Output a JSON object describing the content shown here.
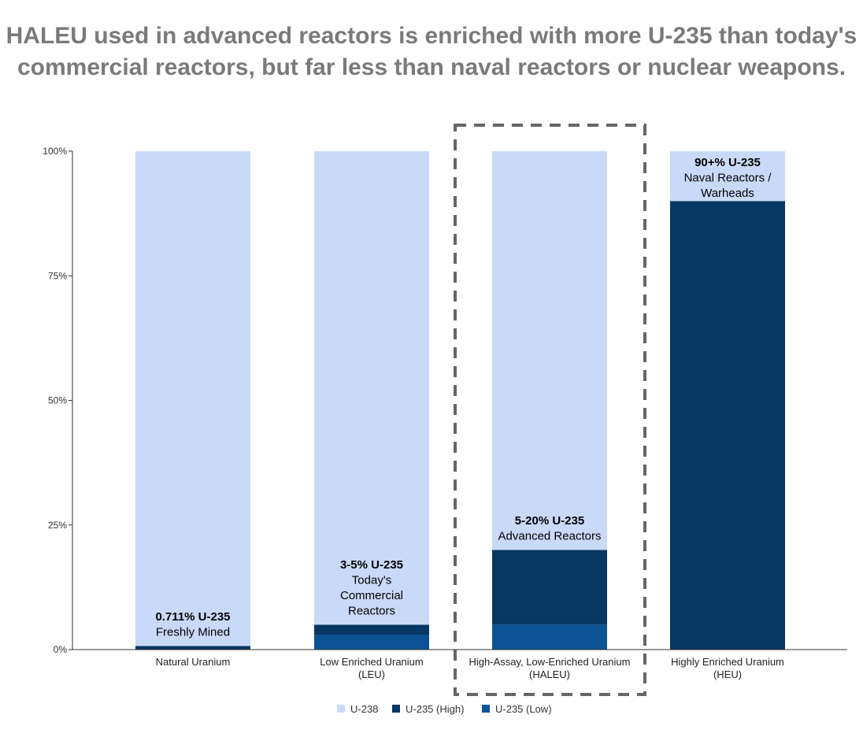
{
  "title": {
    "line1": "HALEU used in advanced reactors is enriched with more U-235 than today's",
    "line2": "commercial reactors, but far less than naval reactors or nuclear weapons."
  },
  "colors": {
    "u238": "#c9daf8",
    "u235_high": "#073763",
    "u235_low": "#0b5394",
    "axis": "#333333",
    "highlight_box": "#666666",
    "title": "#7a7a7a"
  },
  "chart_data": {
    "type": "bar",
    "stacked": true,
    "categories": [
      [
        "Natural Uranium"
      ],
      [
        "Low Enriched Uranium",
        "(LEU)"
      ],
      [
        "High-Assay, Low-Enriched Uranium",
        "(HALEU)"
      ],
      [
        "Highly Enriched Uranium",
        "(HEU)"
      ]
    ],
    "series": [
      {
        "name": "U-235 (Low)",
        "color": "#0b5394",
        "values": [
          0,
          3,
          5,
          0
        ]
      },
      {
        "name": "U-235 (High)",
        "color": "#073763",
        "values": [
          0.711,
          2,
          15,
          90
        ]
      },
      {
        "name": "U-238",
        "color": "#c9daf8",
        "values": [
          99.289,
          95,
          80,
          10
        ]
      }
    ],
    "legend_order": [
      "U-238",
      "U-235 (High)",
      "U-235 (Low)"
    ],
    "legend_position": "bottom",
    "y_ticks": [
      "0%",
      "25%",
      "50%",
      "75%",
      "100%"
    ],
    "y_tick_values": [
      0,
      25,
      50,
      75,
      100
    ],
    "ylim": [
      0,
      100
    ],
    "grid": false,
    "highlighted_category": 2,
    "annotations": [
      {
        "category": 0,
        "lines": [
          "0.711% U-235",
          "Freshly Mined"
        ]
      },
      {
        "category": 1,
        "lines": [
          "3-5% U-235",
          "Today's",
          "Commercial",
          "Reactors"
        ]
      },
      {
        "category": 2,
        "lines": [
          "5-20% U-235",
          "Advanced Reactors"
        ]
      },
      {
        "category": 3,
        "lines": [
          "90+% U-235",
          "Naval Reactors /",
          "Warheads"
        ]
      }
    ]
  }
}
